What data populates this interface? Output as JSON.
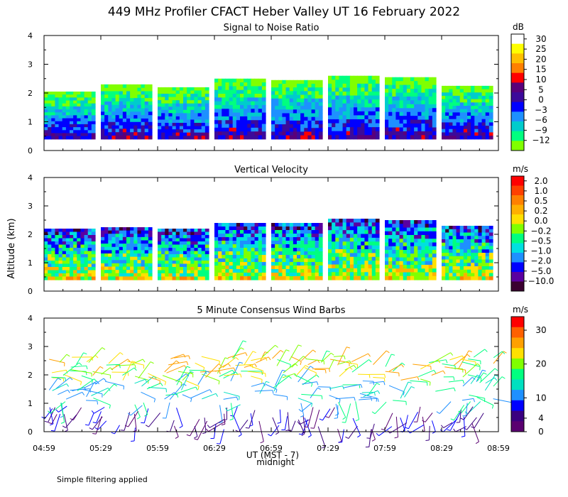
{
  "figure": {
    "title": "449 MHz Profiler CFACT Heber Valley UT 16 February 2022",
    "y_axis_label": "Altitude (km)",
    "x_axis_label": "UT  (MST - 7)",
    "x_axis_sublabel": "midnight",
    "footnote": "Simple filtering applied"
  },
  "chart_data": [
    {
      "type": "heatmap",
      "title": "Signal to Noise Ratio",
      "colorbar_unit": "dB",
      "colorbar_ticks": [
        "30",
        "25",
        "20",
        "15",
        "10",
        "5",
        "0",
        "−3",
        "−6",
        "−9",
        "−12"
      ],
      "colorbar_colors": [
        "#ffffff",
        "#ffff00",
        "#ffc000",
        "#ff8000",
        "#ff0000",
        "#5a007a",
        "#3c0a9a",
        "#0000ff",
        "#1e90ff",
        "#00cccc",
        "#00ff80",
        "#80ff00"
      ],
      "x_ticks": [
        "04:59",
        "05:29",
        "05:59",
        "06:29",
        "06:59",
        "07:29",
        "07:59",
        "08:29",
        "08:59"
      ],
      "y_ticks": [
        "0",
        "1",
        "2",
        "3",
        "4"
      ],
      "xlim_minutes": [
        0,
        240
      ],
      "ylim_km": [
        0,
        4
      ],
      "blocks": [
        {
          "start_min": 0,
          "end_min": 27,
          "top_km": 2.05
        },
        {
          "start_min": 30,
          "end_min": 57,
          "top_km": 2.3
        },
        {
          "start_min": 60,
          "end_min": 87,
          "top_km": 2.2
        },
        {
          "start_min": 90,
          "end_min": 117,
          "top_km": 2.5
        },
        {
          "start_min": 120,
          "end_min": 147,
          "top_km": 2.45
        },
        {
          "start_min": 150,
          "end_min": 177,
          "top_km": 2.6
        },
        {
          "start_min": 180,
          "end_min": 207,
          "top_km": 2.55
        },
        {
          "start_min": 210,
          "end_min": 237,
          "top_km": 2.25
        }
      ]
    },
    {
      "type": "heatmap",
      "title": "Vertical Velocity",
      "colorbar_unit": "m/s",
      "colorbar_ticks": [
        "2.0",
        "1.0",
        "0.5",
        "0.2",
        "0.0",
        "−0.2",
        "−0.5",
        "−1.0",
        "−2.0",
        "−5.0",
        "−10.0"
      ],
      "colorbar_colors": [
        "#ff0000",
        "#ff4000",
        "#ff8000",
        "#ffb000",
        "#ffe000",
        "#80ff00",
        "#00ff80",
        "#00e0e0",
        "#1e90ff",
        "#0000ff",
        "#5a00a0",
        "#3a0030"
      ],
      "x_ticks": [
        "04:59",
        "05:29",
        "05:59",
        "06:29",
        "06:59",
        "07:29",
        "07:59",
        "08:29",
        "08:59"
      ],
      "y_ticks": [
        "0",
        "1",
        "2",
        "3",
        "4"
      ],
      "xlim_minutes": [
        0,
        240
      ],
      "ylim_km": [
        0,
        4
      ],
      "blocks": [
        {
          "start_min": 0,
          "end_min": 27,
          "top_km": 2.2
        },
        {
          "start_min": 30,
          "end_min": 57,
          "top_km": 2.25
        },
        {
          "start_min": 60,
          "end_min": 87,
          "top_km": 2.2
        },
        {
          "start_min": 90,
          "end_min": 117,
          "top_km": 2.4
        },
        {
          "start_min": 120,
          "end_min": 147,
          "top_km": 2.4
        },
        {
          "start_min": 150,
          "end_min": 177,
          "top_km": 2.55
        },
        {
          "start_min": 180,
          "end_min": 207,
          "top_km": 2.5
        },
        {
          "start_min": 210,
          "end_min": 237,
          "top_km": 2.3
        }
      ]
    },
    {
      "type": "scatter",
      "title": "5 Minute Consensus Wind Barbs",
      "colorbar_unit": "m/s",
      "colorbar_ticks": [
        "30",
        "20",
        "10",
        "4",
        "0"
      ],
      "colorbar_colors": [
        "#ff0000",
        "#ff6000",
        "#ffa000",
        "#ffe000",
        "#80ff00",
        "#00ff80",
        "#00e0c0",
        "#1e90ff",
        "#0000ff",
        "#3a0080",
        "#5a0070"
      ],
      "x_ticks": [
        "04:59",
        "05:29",
        "05:59",
        "06:29",
        "06:59",
        "07:29",
        "07:59",
        "08:29",
        "08:59"
      ],
      "y_ticks": [
        "0",
        "1",
        "2",
        "3",
        "4"
      ],
      "xlim_minutes": [
        0,
        240
      ],
      "ylim_km": [
        0,
        4
      ]
    }
  ]
}
